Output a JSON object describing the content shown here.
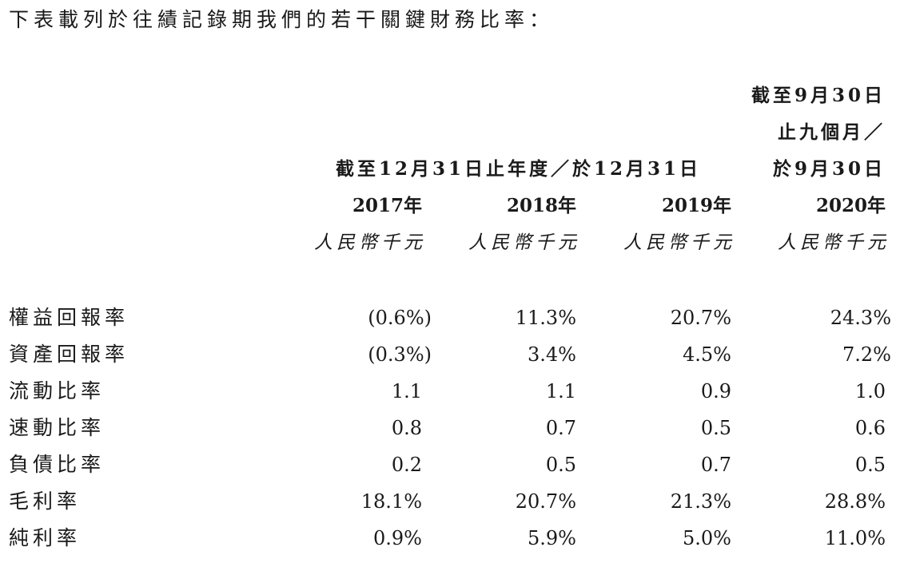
{
  "intro": "下表載列於往績記錄期我們的若干關鍵財務比率：",
  "header": {
    "group_label": "截至12月31日止年度／於12月31日",
    "last_col_line1": "截至9月30日",
    "last_col_line2": "止九個月／",
    "last_col_line3": "於9月30日",
    "years": [
      "2017年",
      "2018年",
      "2019年",
      "2020年"
    ],
    "unit": "人民幣千元"
  },
  "table": {
    "rows": [
      {
        "label": "權益回報率",
        "values": [
          "(0.6%)",
          "11.3%",
          "20.7%",
          "24.3%"
        ]
      },
      {
        "label": "資產回報率",
        "values": [
          "(0.3%)",
          "3.4%",
          "4.5%",
          "7.2%"
        ]
      },
      {
        "label": "流動比率",
        "values": [
          "1.1",
          "1.1",
          "0.9",
          "1.0"
        ]
      },
      {
        "label": "速動比率",
        "values": [
          "0.8",
          "0.7",
          "0.5",
          "0.6"
        ]
      },
      {
        "label": "負債比率",
        "values": [
          "0.2",
          "0.5",
          "0.7",
          "0.5"
        ]
      },
      {
        "label": "毛利率",
        "values": [
          "18.1%",
          "20.7%",
          "21.3%",
          "28.8%"
        ]
      },
      {
        "label": "純利率",
        "values": [
          "0.9%",
          "5.9%",
          "5.0%",
          "11.0%"
        ]
      }
    ]
  }
}
